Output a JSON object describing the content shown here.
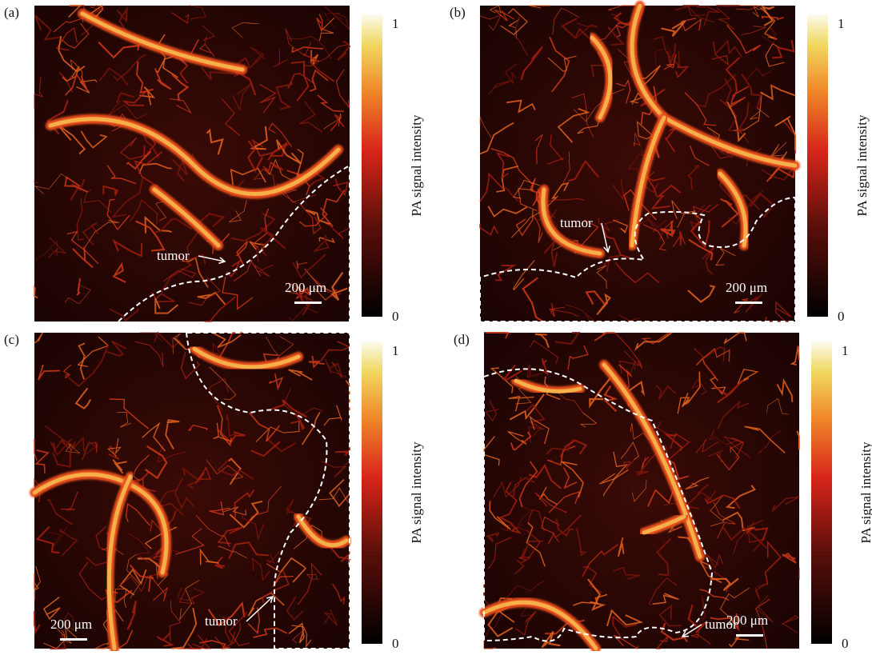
{
  "colorbar": {
    "title": "PA signal intensity",
    "max_label": 1,
    "min_label": 0
  },
  "panels": [
    {
      "label": "(a)",
      "annotation": "tumor",
      "scale_bar": "200 μm"
    },
    {
      "label": "(b)",
      "annotation": "tumor",
      "scale_bar": "200 μm"
    },
    {
      "label": "(c)",
      "annotation": "tumor",
      "scale_bar": "200 μm"
    },
    {
      "label": "(d)",
      "annotation": "tumor",
      "scale_bar": "200 μm"
    }
  ]
}
